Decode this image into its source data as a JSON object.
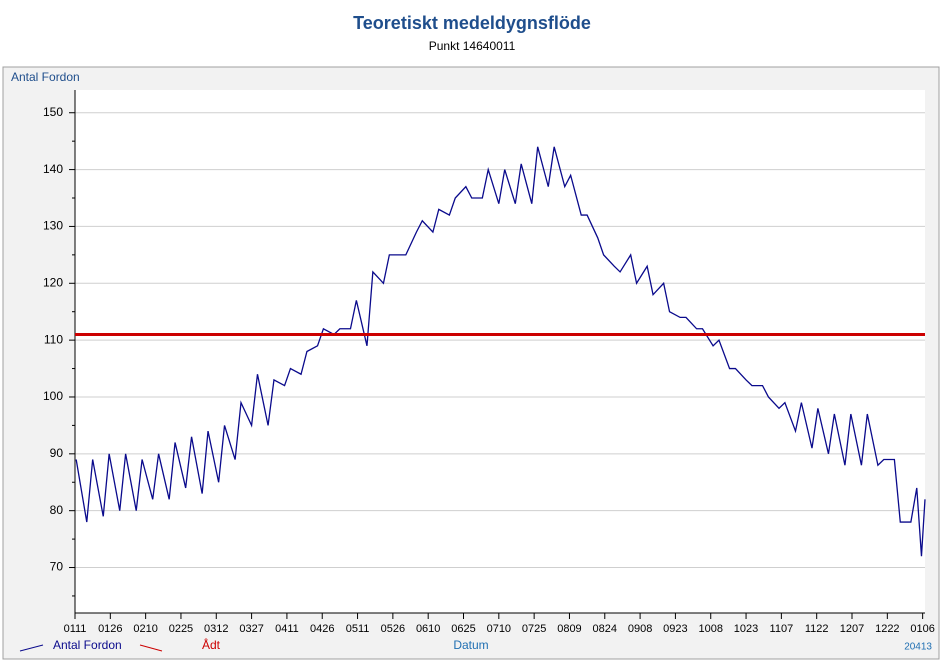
{
  "chart_data": {
    "type": "line",
    "title": "Teoretiskt medeldygnsflöde",
    "subtitle": "Punkt 14640011",
    "y_label": "Antal Fordon",
    "x_label": "Datum",
    "footer": "20413",
    "xlim": [
      0,
      361
    ],
    "xticks": [
      {
        "value": 0,
        "label": "0111"
      },
      {
        "value": 15,
        "label": "0126"
      },
      {
        "value": 30,
        "label": "0210"
      },
      {
        "value": 45,
        "label": "0225"
      },
      {
        "value": 60,
        "label": "0312"
      },
      {
        "value": 75,
        "label": "0327"
      },
      {
        "value": 90,
        "label": "0411"
      },
      {
        "value": 105,
        "label": "0426"
      },
      {
        "value": 120,
        "label": "0511"
      },
      {
        "value": 135,
        "label": "0526"
      },
      {
        "value": 150,
        "label": "0610"
      },
      {
        "value": 165,
        "label": "0625"
      },
      {
        "value": 180,
        "label": "0710"
      },
      {
        "value": 195,
        "label": "0725"
      },
      {
        "value": 210,
        "label": "0809"
      },
      {
        "value": 225,
        "label": "0824"
      },
      {
        "value": 240,
        "label": "0908"
      },
      {
        "value": 255,
        "label": "0923"
      },
      {
        "value": 270,
        "label": "1008"
      },
      {
        "value": 285,
        "label": "1023"
      },
      {
        "value": 300,
        "label": "1107"
      },
      {
        "value": 315,
        "label": "1122"
      },
      {
        "value": 330,
        "label": "1207"
      },
      {
        "value": 345,
        "label": "1222"
      },
      {
        "value": 360,
        "label": "0106"
      }
    ],
    "ylim": [
      62,
      154
    ],
    "yticks": [
      70,
      80,
      90,
      100,
      110,
      120,
      130,
      140,
      150
    ],
    "yticks_minor": [
      65,
      75,
      85,
      95,
      105,
      115,
      125,
      135,
      145
    ],
    "grid": true,
    "x": [
      0.5,
      5,
      7.5,
      12,
      14.5,
      19,
      21.5,
      26,
      28.5,
      33,
      35.5,
      40,
      42.5,
      47,
      49.5,
      54,
      56.5,
      61,
      63.5,
      68,
      70.5,
      75,
      77.5,
      82,
      84.5,
      89,
      91.5,
      96,
      98.5,
      103,
      105.5,
      110,
      112.5,
      117,
      119.5,
      124,
      126.5,
      131,
      133.5,
      138,
      140.5,
      145,
      147.5,
      152,
      154.5,
      159,
      161.5,
      166,
      168.5,
      173,
      175.5,
      180,
      182.5,
      187,
      189.5,
      194,
      196.5,
      201,
      203.5,
      208,
      210.5,
      215,
      217.5,
      222,
      224.5,
      229,
      231.5,
      236,
      238.5,
      243,
      245.5,
      250,
      252.5,
      257,
      259.5,
      264,
      266.5,
      271,
      273.5,
      278,
      280.5,
      285,
      287.5,
      292,
      294.5,
      299,
      301.5,
      306,
      308.5,
      313,
      315.5,
      320,
      322.5,
      327,
      329.5,
      334,
      336.5,
      341,
      343.5,
      348,
      350.5,
      355,
      357.5,
      359.5,
      361
    ],
    "series": [
      {
        "name": "Antal Fordon",
        "color": "#0a0a8c",
        "values": [
          89,
          78,
          89,
          79,
          90,
          80,
          90,
          80,
          89,
          82,
          90,
          82,
          92,
          84,
          93,
          83,
          94,
          85,
          95,
          89,
          99,
          95,
          104,
          95,
          103,
          102,
          105,
          104,
          108,
          109,
          112,
          111,
          112,
          112,
          117,
          109,
          122,
          120,
          125,
          125,
          125,
          129,
          131,
          129,
          133,
          132,
          135,
          137,
          135,
          135,
          140,
          134,
          140,
          134,
          141,
          134,
          144,
          137,
          144,
          137,
          139,
          132,
          132,
          128,
          125,
          123,
          122,
          125,
          120,
          123,
          118,
          120,
          115,
          114,
          114,
          112,
          112,
          109,
          110,
          105,
          105,
          103,
          102,
          102,
          100,
          98,
          99,
          94,
          99,
          91,
          98,
          90,
          97,
          88,
          97,
          88,
          97,
          88,
          89,
          89,
          78,
          78,
          84,
          72,
          82
        ]
      }
    ],
    "reference": {
      "name": "Ådt",
      "value": 111,
      "color": "#cc0000"
    }
  }
}
